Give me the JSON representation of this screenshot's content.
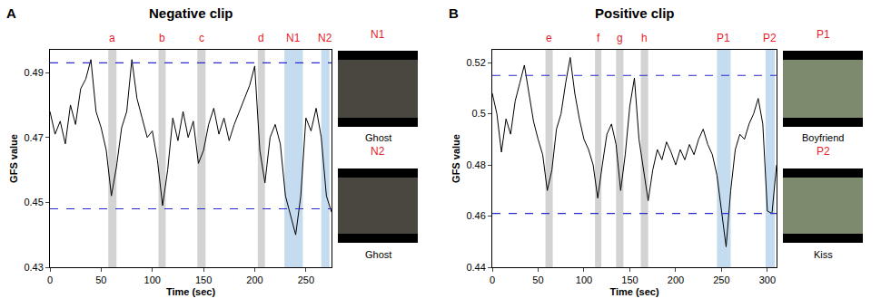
{
  "chart_data": [
    {
      "type": "line",
      "panel_label": "A",
      "title": "Negative clip",
      "xlabel": "Time (sec)",
      "ylabel": "GFS value",
      "color": "#000000",
      "x": [
        0,
        5,
        10,
        15,
        20,
        25,
        30,
        35,
        40,
        45,
        50,
        55,
        60,
        65,
        70,
        75,
        80,
        85,
        90,
        95,
        100,
        105,
        110,
        115,
        120,
        125,
        130,
        135,
        140,
        145,
        150,
        155,
        160,
        165,
        170,
        175,
        180,
        185,
        190,
        195,
        200,
        205,
        210,
        215,
        220,
        225,
        230,
        235,
        240,
        245,
        250,
        255,
        260,
        265,
        270,
        275
      ],
      "values": [
        0.478,
        0.471,
        0.475,
        0.468,
        0.48,
        0.474,
        0.485,
        0.488,
        0.494,
        0.478,
        0.473,
        0.466,
        0.452,
        0.461,
        0.473,
        0.478,
        0.494,
        0.482,
        0.476,
        0.47,
        0.472,
        0.463,
        0.449,
        0.46,
        0.476,
        0.469,
        0.478,
        0.47,
        0.475,
        0.462,
        0.466,
        0.474,
        0.479,
        0.471,
        0.476,
        0.469,
        0.474,
        0.478,
        0.482,
        0.486,
        0.492,
        0.466,
        0.456,
        0.47,
        0.474,
        0.468,
        0.452,
        0.446,
        0.44,
        0.452,
        0.476,
        0.472,
        0.479,
        0.47,
        0.452,
        0.447
      ],
      "xlim": [
        0,
        275
      ],
      "ylim": [
        0.43,
        0.497
      ],
      "xticks": [
        0,
        50,
        100,
        150,
        200,
        250
      ],
      "yticks": [
        0.43,
        0.45,
        0.47,
        0.49
      ],
      "reference_lines": {
        "values": [
          0.493,
          0.448
        ],
        "color": "#2a2ad0",
        "line_style": "dash"
      },
      "bands": [
        {
          "label": "a",
          "start": 57,
          "end": 65,
          "color": "#d3d3d3"
        },
        {
          "label": "b",
          "start": 106,
          "end": 113,
          "color": "#d3d3d3"
        },
        {
          "label": "c",
          "start": 144,
          "end": 152,
          "color": "#d3d3d3"
        },
        {
          "label": "d",
          "start": 203,
          "end": 210,
          "color": "#d3d3d3"
        },
        {
          "label": "N1",
          "start": 229,
          "end": 247,
          "color": "#c5dcf0"
        },
        {
          "label": "N2",
          "start": 265,
          "end": 273,
          "color": "#c5dcf0"
        }
      ],
      "stills": [
        {
          "label": "N1",
          "caption": "Ghost"
        },
        {
          "label": "N2",
          "caption": "Ghost"
        }
      ]
    },
    {
      "type": "line",
      "panel_label": "B",
      "title": "Positive clip",
      "xlabel": "Time (sec)",
      "ylabel": "GFS value",
      "color": "#000000",
      "x": [
        0,
        5,
        10,
        15,
        20,
        25,
        30,
        35,
        40,
        45,
        50,
        55,
        60,
        65,
        70,
        75,
        80,
        85,
        90,
        95,
        100,
        105,
        110,
        115,
        120,
        125,
        130,
        135,
        140,
        145,
        150,
        155,
        160,
        165,
        170,
        175,
        180,
        185,
        190,
        195,
        200,
        205,
        210,
        215,
        220,
        225,
        230,
        235,
        240,
        245,
        250,
        255,
        260,
        265,
        270,
        275,
        280,
        285,
        290,
        295,
        300,
        305,
        310
      ],
      "values": [
        0.508,
        0.5,
        0.485,
        0.498,
        0.492,
        0.505,
        0.512,
        0.519,
        0.508,
        0.497,
        0.49,
        0.484,
        0.47,
        0.478,
        0.494,
        0.5,
        0.512,
        0.522,
        0.508,
        0.498,
        0.49,
        0.486,
        0.48,
        0.467,
        0.48,
        0.492,
        0.496,
        0.488,
        0.47,
        0.484,
        0.503,
        0.514,
        0.49,
        0.478,
        0.466,
        0.478,
        0.486,
        0.482,
        0.489,
        0.485,
        0.48,
        0.486,
        0.482,
        0.488,
        0.484,
        0.49,
        0.494,
        0.488,
        0.484,
        0.476,
        0.462,
        0.448,
        0.47,
        0.486,
        0.492,
        0.49,
        0.496,
        0.5,
        0.506,
        0.496,
        0.462,
        0.461,
        0.48
      ],
      "xlim": [
        0,
        310
      ],
      "ylim": [
        0.44,
        0.525
      ],
      "xticks": [
        0,
        50,
        100,
        150,
        200,
        250,
        300
      ],
      "yticks": [
        0.44,
        0.46,
        0.48,
        0.5,
        0.52
      ],
      "reference_lines": {
        "values": [
          0.515,
          0.461
        ],
        "color": "#2a2ad0",
        "line_style": "dash"
      },
      "bands": [
        {
          "label": "e",
          "start": 58,
          "end": 66,
          "color": "#d3d3d3"
        },
        {
          "label": "f",
          "start": 112,
          "end": 119,
          "color": "#d3d3d3"
        },
        {
          "label": "g",
          "start": 135,
          "end": 143,
          "color": "#d3d3d3"
        },
        {
          "label": "h",
          "start": 162,
          "end": 170,
          "color": "#d3d3d3"
        },
        {
          "label": "P1",
          "start": 245,
          "end": 260,
          "color": "#c5dcf0"
        },
        {
          "label": "P2",
          "start": 298,
          "end": 308,
          "color": "#c5dcf0"
        }
      ],
      "stills": [
        {
          "label": "P1",
          "caption": "Boyfriend"
        },
        {
          "label": "P2",
          "caption": "Kiss"
        }
      ]
    }
  ]
}
